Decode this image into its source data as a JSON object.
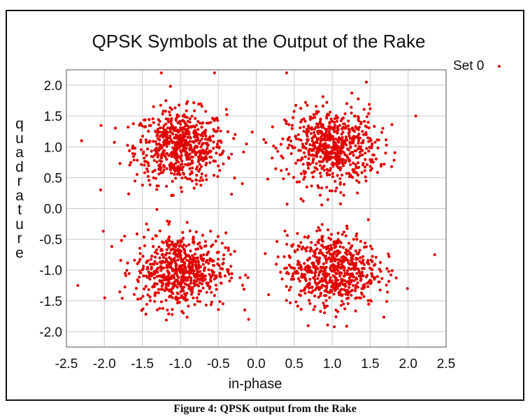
{
  "chart_data": {
    "type": "scatter",
    "title": "QPSK Symbols at the Output of the Rake",
    "xlabel": "in-phase",
    "ylabel": "quadrature",
    "xlim": [
      -2.5,
      2.5
    ],
    "ylim": [
      -2.25,
      2.25
    ],
    "x_ticks": [
      "-2.5",
      "-2.0",
      "-1.5",
      "-1.0",
      "-0.5",
      "0.0",
      "0.5",
      "1.0",
      "1.5",
      "2.0",
      "2.5"
    ],
    "y_ticks": [
      "2.0",
      "1.5",
      "1.0",
      "0.5",
      "0.0",
      "-0.5",
      "-1.0",
      "-1.5",
      "-2.0"
    ],
    "grid": true,
    "legend": "top-right outside",
    "series": [
      {
        "name": "Set 0",
        "color": "#e00000",
        "marker": "dot",
        "cluster_centers": [
          [
            -1.0,
            1.0
          ],
          [
            1.0,
            1.0
          ],
          [
            -1.0,
            -1.0
          ],
          [
            1.0,
            -1.0
          ]
        ],
        "cluster_spread_sigma": 0.3,
        "points_per_cluster": 650,
        "outliers": [
          [
            -2.3,
            1.1
          ],
          [
            0.4,
            2.2
          ],
          [
            -0.55,
            2.2
          ],
          [
            2.1,
            1.5
          ],
          [
            -2.35,
            -1.25
          ],
          [
            2.35,
            -0.75
          ],
          [
            -2.05,
            0.3
          ],
          [
            -0.1,
            -1.8
          ],
          [
            -1.25,
            2.2
          ],
          [
            1.45,
            2.05
          ]
        ]
      }
    ]
  },
  "caption": "Figure 4: QPSK output from the Rake"
}
